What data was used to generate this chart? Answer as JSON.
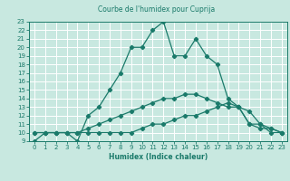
{
  "title": "Courbe de l'humidex pour Cuprija",
  "xlabel": "Humidex (Indice chaleur)",
  "bg_color": "#c8e8e0",
  "grid_color": "#ffffff",
  "line_color": "#1a7a6a",
  "xlim": [
    -0.5,
    23.5
  ],
  "ylim": [
    9,
    23
  ],
  "xticks": [
    0,
    1,
    2,
    3,
    4,
    5,
    6,
    7,
    8,
    9,
    10,
    11,
    12,
    13,
    14,
    15,
    16,
    17,
    18,
    19,
    20,
    21,
    22,
    23
  ],
  "yticks": [
    9,
    10,
    11,
    12,
    13,
    14,
    15,
    16,
    17,
    18,
    19,
    20,
    21,
    22,
    23
  ],
  "line1_x": [
    0,
    1,
    2,
    3,
    4,
    5,
    6,
    7,
    8,
    9,
    10,
    11,
    12,
    13,
    14,
    15,
    16,
    17,
    18,
    19,
    20,
    21,
    22,
    23
  ],
  "line1_y": [
    9,
    10,
    10,
    10,
    9,
    12,
    13,
    15,
    17,
    20,
    20,
    22,
    23,
    19,
    19,
    21,
    19,
    18,
    14,
    13,
    11,
    11,
    10,
    10
  ],
  "line2_x": [
    0,
    1,
    2,
    3,
    4,
    5,
    6,
    7,
    8,
    9,
    10,
    11,
    12,
    13,
    14,
    15,
    16,
    17,
    18,
    19,
    20,
    21,
    22,
    23
  ],
  "line2_y": [
    10,
    10,
    10,
    10,
    10,
    10,
    10,
    10,
    10,
    10,
    10.5,
    11,
    11,
    11.5,
    12,
    12,
    12.5,
    13,
    13.5,
    13,
    11,
    10.5,
    10.5,
    10
  ],
  "line3_x": [
    0,
    1,
    2,
    3,
    4,
    5,
    6,
    7,
    8,
    9,
    10,
    11,
    12,
    13,
    14,
    15,
    16,
    17,
    18,
    19,
    20,
    21,
    22,
    23
  ],
  "line3_y": [
    10,
    10,
    10,
    10,
    10,
    10.5,
    11,
    11.5,
    12,
    12.5,
    13,
    13.5,
    14,
    14,
    14.5,
    14.5,
    14,
    13.5,
    13,
    13,
    12.5,
    11,
    10.5,
    10
  ]
}
